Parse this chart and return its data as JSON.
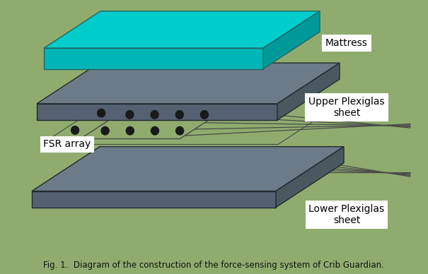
{
  "bg_color": "#8fac6e",
  "title": "Fig. 1.  Diagram of the construction of the force-sensing system of Crib Guardian.",
  "title_fontsize": 8.5,
  "mattress_top": "#00cccc",
  "mattress_side_right": "#009999",
  "mattress_side_bottom": "#00b5b5",
  "mattress_edge": "#007777",
  "plex_top": "#6b7b87",
  "plex_side_right": "#4a5860",
  "plex_side_bottom": "#556070",
  "plex_edge": "#333d45",
  "fsr_color": "#8fac6e",
  "fsr_line_color": "#4a4a4a",
  "dot_color": "#1a1a1a",
  "label_bg": "#ffffff",
  "label_color": "#000000",
  "mattress_label": "Mattress",
  "upper_label": "Upper Plexiglas\nsheet",
  "fsr_label": "FSR array",
  "lower_label": "Lower Plexiglas\nsheet"
}
